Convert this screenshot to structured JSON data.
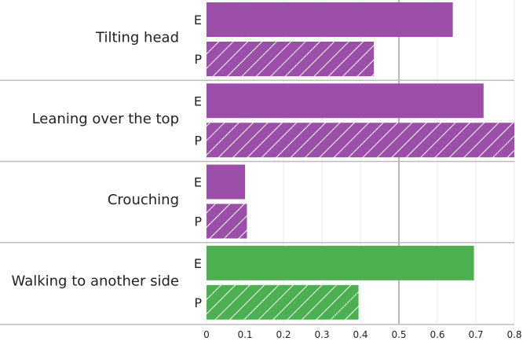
{
  "chart_data": {
    "type": "bar",
    "orientation": "horizontal",
    "title": "",
    "xlabel": "",
    "ylabel": "",
    "xlim": [
      0,
      0.8
    ],
    "xticks": [
      "0",
      "0.1",
      "0.2",
      "0.3",
      "0.4",
      "0.5",
      "0.6",
      "0.7",
      "0.8"
    ],
    "reference_line": 0.5,
    "grid": true,
    "categories": [
      "Tilting head",
      "Leaning over the top",
      "Crouching",
      "Walking to another side"
    ],
    "series": [
      {
        "key": "E",
        "pattern": "solid",
        "values": [
          0.64,
          0.72,
          0.1,
          0.695
        ]
      },
      {
        "key": "P",
        "pattern": "hatched",
        "values": [
          0.435,
          0.8,
          0.105,
          0.395
        ]
      }
    ],
    "bar_colors": [
      "#9b4fa8",
      "#9b4fa8",
      "#9b4fa8",
      "#4caf50"
    ]
  }
}
